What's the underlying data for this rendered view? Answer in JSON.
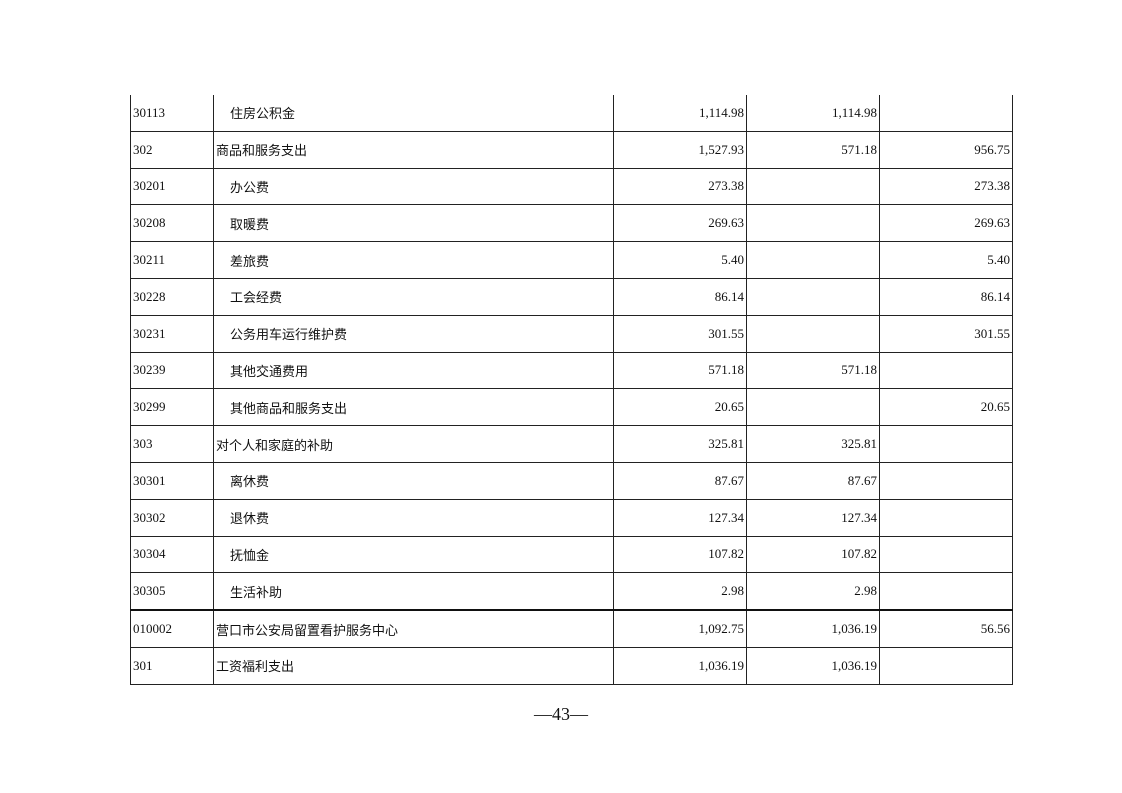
{
  "rows": [
    {
      "code": "30113",
      "name": "住房公积金",
      "child": true,
      "total": "1,114.98",
      "basic": "1,114.98",
      "project": ""
    },
    {
      "code": "302",
      "name": "商品和服务支出",
      "child": false,
      "total": "1,527.93",
      "basic": "571.18",
      "project": "956.75"
    },
    {
      "code": "30201",
      "name": "办公费",
      "child": true,
      "total": "273.38",
      "basic": "",
      "project": "273.38"
    },
    {
      "code": "30208",
      "name": "取暖费",
      "child": true,
      "total": "269.63",
      "basic": "",
      "project": "269.63"
    },
    {
      "code": "30211",
      "name": "差旅费",
      "child": true,
      "total": "5.40",
      "basic": "",
      "project": "5.40"
    },
    {
      "code": "30228",
      "name": "工会经费",
      "child": true,
      "total": "86.14",
      "basic": "",
      "project": "86.14"
    },
    {
      "code": "30231",
      "name": "公务用车运行维护费",
      "child": true,
      "total": "301.55",
      "basic": "",
      "project": "301.55"
    },
    {
      "code": "30239",
      "name": "其他交通费用",
      "child": true,
      "total": "571.18",
      "basic": "571.18",
      "project": ""
    },
    {
      "code": "30299",
      "name": "其他商品和服务支出",
      "child": true,
      "total": "20.65",
      "basic": "",
      "project": "20.65"
    },
    {
      "code": "303",
      "name": "对个人和家庭的补助",
      "child": false,
      "total": "325.81",
      "basic": "325.81",
      "project": ""
    },
    {
      "code": "30301",
      "name": "离休费",
      "child": true,
      "total": "87.67",
      "basic": "87.67",
      "project": ""
    },
    {
      "code": "30302",
      "name": "退休费",
      "child": true,
      "total": "127.34",
      "basic": "127.34",
      "project": ""
    },
    {
      "code": "30304",
      "name": "抚恤金",
      "child": true,
      "total": "107.82",
      "basic": "107.82",
      "project": ""
    },
    {
      "code": "30305",
      "name": "生活补助",
      "child": true,
      "total": "2.98",
      "basic": "2.98",
      "project": ""
    },
    {
      "code": "010002",
      "name": "营口市公安局留置看护服务中心",
      "child": false,
      "total": "1,092.75",
      "basic": "1,036.19",
      "project": "56.56"
    },
    {
      "code": "301",
      "name": "工资福利支出",
      "child": false,
      "total": "1,036.19",
      "basic": "1,036.19",
      "project": ""
    }
  ],
  "page_number": "—43—"
}
